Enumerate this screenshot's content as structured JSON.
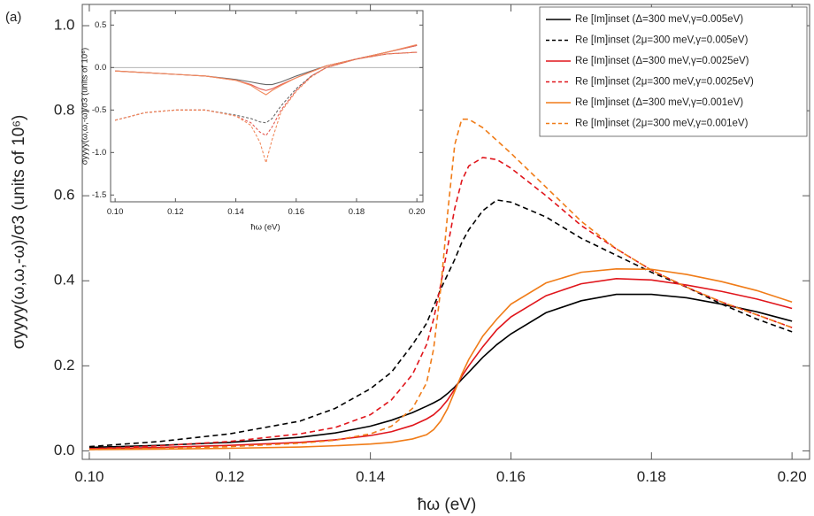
{
  "chart_data": [
    {
      "type": "line",
      "panel_label": "(a)",
      "xlabel": "ħω (eV)",
      "ylabel": "σyyyy(ω,ω,-ω)/σ3 (units of 10⁶)",
      "xlim": [
        0.099,
        0.2025
      ],
      "ylim": [
        -0.02,
        1.05
      ],
      "xticks": [
        {
          "value": 0.1,
          "label": "0.10"
        },
        {
          "value": 0.12,
          "label": "0.12"
        },
        {
          "value": 0.14,
          "label": "0.14"
        },
        {
          "value": 0.16,
          "label": "0.16"
        },
        {
          "value": 0.18,
          "label": "0.18"
        },
        {
          "value": 0.2,
          "label": "0.20"
        }
      ],
      "yticks": [
        {
          "value": 0,
          "label": "0.0"
        },
        0.2,
        0.4,
        0.6,
        0.8,
        {
          "value": 1,
          "label": "1.0"
        }
      ],
      "grid": false,
      "legend": "upper right",
      "x": [
        0.1,
        0.11,
        0.12,
        0.13,
        0.135,
        0.14,
        0.143,
        0.146,
        0.148,
        0.149,
        0.15,
        0.151,
        0.152,
        0.153,
        0.154,
        0.156,
        0.158,
        0.16,
        0.165,
        0.17,
        0.175,
        0.18,
        0.185,
        0.19,
        0.195,
        0.2
      ],
      "series": [
        {
          "name": "Re [Im]inset (Δ=300 meV,γ=0.005eV)",
          "color": "#000000",
          "dash": false,
          "values": [
            0.008,
            0.013,
            0.02,
            0.032,
            0.042,
            0.058,
            0.072,
            0.09,
            0.105,
            0.113,
            0.122,
            0.135,
            0.15,
            0.168,
            0.185,
            0.22,
            0.25,
            0.275,
            0.325,
            0.353,
            0.368,
            0.368,
            0.36,
            0.345,
            0.327,
            0.305
          ]
        },
        {
          "name": "Re [Im]inset (2μ=300 meV,γ=0.005eV)",
          "color": "#000000",
          "dash": true,
          "values": [
            0.01,
            0.022,
            0.04,
            0.07,
            0.1,
            0.146,
            0.185,
            0.25,
            0.3,
            0.34,
            0.38,
            0.415,
            0.45,
            0.49,
            0.52,
            0.565,
            0.59,
            0.585,
            0.55,
            0.5,
            0.46,
            0.42,
            0.385,
            0.345,
            0.31,
            0.28
          ]
        },
        {
          "name": "Re [Im]inset (Δ=300 meV,γ=0.0025eV)",
          "color": "#e0151b",
          "dash": false,
          "values": [
            0.005,
            0.008,
            0.013,
            0.02,
            0.026,
            0.036,
            0.045,
            0.06,
            0.075,
            0.085,
            0.1,
            0.12,
            0.145,
            0.175,
            0.2,
            0.245,
            0.285,
            0.315,
            0.365,
            0.393,
            0.405,
            0.402,
            0.39,
            0.375,
            0.357,
            0.335
          ]
        },
        {
          "name": "Re [Im]inset (2μ=300 meV,γ=0.0025eV)",
          "color": "#e0151b",
          "dash": true,
          "values": [
            0.005,
            0.012,
            0.022,
            0.04,
            0.055,
            0.085,
            0.12,
            0.18,
            0.25,
            0.31,
            0.39,
            0.48,
            0.57,
            0.635,
            0.67,
            0.69,
            0.685,
            0.665,
            0.6,
            0.53,
            0.475,
            0.425,
            0.385,
            0.35,
            0.32,
            0.29
          ]
        },
        {
          "name": "Re [Im]inset (Δ=300 meV,γ=0.001eV)",
          "color": "#f07c18",
          "dash": false,
          "values": [
            0.003,
            0.004,
            0.006,
            0.009,
            0.012,
            0.016,
            0.02,
            0.028,
            0.038,
            0.05,
            0.07,
            0.1,
            0.14,
            0.18,
            0.215,
            0.27,
            0.31,
            0.345,
            0.395,
            0.42,
            0.428,
            0.427,
            0.415,
            0.398,
            0.377,
            0.35
          ]
        },
        {
          "name": "Re [Im]inset (2μ=300 meV,γ=0.001eV)",
          "color": "#f07c18",
          "dash": true,
          "values": [
            0.003,
            0.006,
            0.01,
            0.018,
            0.025,
            0.04,
            0.058,
            0.1,
            0.16,
            0.24,
            0.38,
            0.56,
            0.72,
            0.78,
            0.78,
            0.76,
            0.73,
            0.7,
            0.62,
            0.54,
            0.475,
            0.425,
            0.385,
            0.35,
            0.32,
            0.29
          ]
        }
      ]
    },
    {
      "type": "line",
      "xlabel": "ħω (eV)",
      "ylabel": "σyyyy(ω,ω,-ω)/σ3 (units of 10⁶)",
      "xlim": [
        0.0985,
        0.202
      ],
      "ylim": [
        -1.58,
        0.67
      ],
      "reference_line": 0,
      "xticks": [
        {
          "value": 0.1,
          "label": "0.10"
        },
        {
          "value": 0.12,
          "label": "0.12"
        },
        {
          "value": 0.14,
          "label": "0.14"
        },
        {
          "value": 0.16,
          "label": "0.16"
        },
        {
          "value": 0.18,
          "label": "0.18"
        },
        {
          "value": 0.2,
          "label": "0.20"
        }
      ],
      "yticks": [
        0.5,
        {
          "value": 0,
          "label": "0.0"
        },
        -0.5,
        {
          "value": -1,
          "label": "-1.0"
        },
        -1.5
      ],
      "grid": false,
      "x": [
        0.1,
        0.11,
        0.12,
        0.13,
        0.14,
        0.145,
        0.148,
        0.15,
        0.152,
        0.155,
        0.16,
        0.165,
        0.17,
        0.18,
        0.19,
        0.2
      ],
      "series": [
        {
          "color": "#666666",
          "dash": false,
          "values": [
            -0.04,
            -0.06,
            -0.08,
            -0.1,
            -0.14,
            -0.17,
            -0.19,
            -0.2,
            -0.2,
            -0.17,
            -0.1,
            -0.04,
            0.02,
            0.1,
            0.18,
            0.26
          ]
        },
        {
          "color": "#e35a52",
          "dash": false,
          "values": [
            -0.04,
            -0.06,
            -0.08,
            -0.1,
            -0.15,
            -0.2,
            -0.25,
            -0.27,
            -0.25,
            -0.2,
            -0.12,
            -0.05,
            0.02,
            0.1,
            0.18,
            0.26
          ]
        },
        {
          "color": "#f18a5d",
          "dash": false,
          "values": [
            -0.04,
            -0.06,
            -0.08,
            -0.1,
            -0.15,
            -0.21,
            -0.28,
            -0.32,
            -0.27,
            -0.21,
            -0.12,
            -0.05,
            0.02,
            0.1,
            0.18,
            0.27
          ]
        },
        {
          "color": "#666666",
          "dash": true,
          "values": [
            -0.62,
            -0.53,
            -0.5,
            -0.5,
            -0.56,
            -0.6,
            -0.64,
            -0.65,
            -0.6,
            -0.45,
            -0.25,
            -0.1,
            0.0,
            0.1,
            0.16,
            0.18
          ]
        },
        {
          "color": "#e35a52",
          "dash": true,
          "values": [
            -0.62,
            -0.53,
            -0.5,
            -0.5,
            -0.57,
            -0.65,
            -0.76,
            -0.8,
            -0.7,
            -0.5,
            -0.27,
            -0.1,
            0.0,
            0.1,
            0.16,
            0.18
          ]
        },
        {
          "color": "#f18a5d",
          "dash": true,
          "values": [
            -0.62,
            -0.53,
            -0.5,
            -0.5,
            -0.57,
            -0.68,
            -0.88,
            -1.12,
            -0.85,
            -0.52,
            -0.28,
            -0.11,
            0.0,
            0.1,
            0.16,
            0.18
          ]
        }
      ]
    }
  ]
}
